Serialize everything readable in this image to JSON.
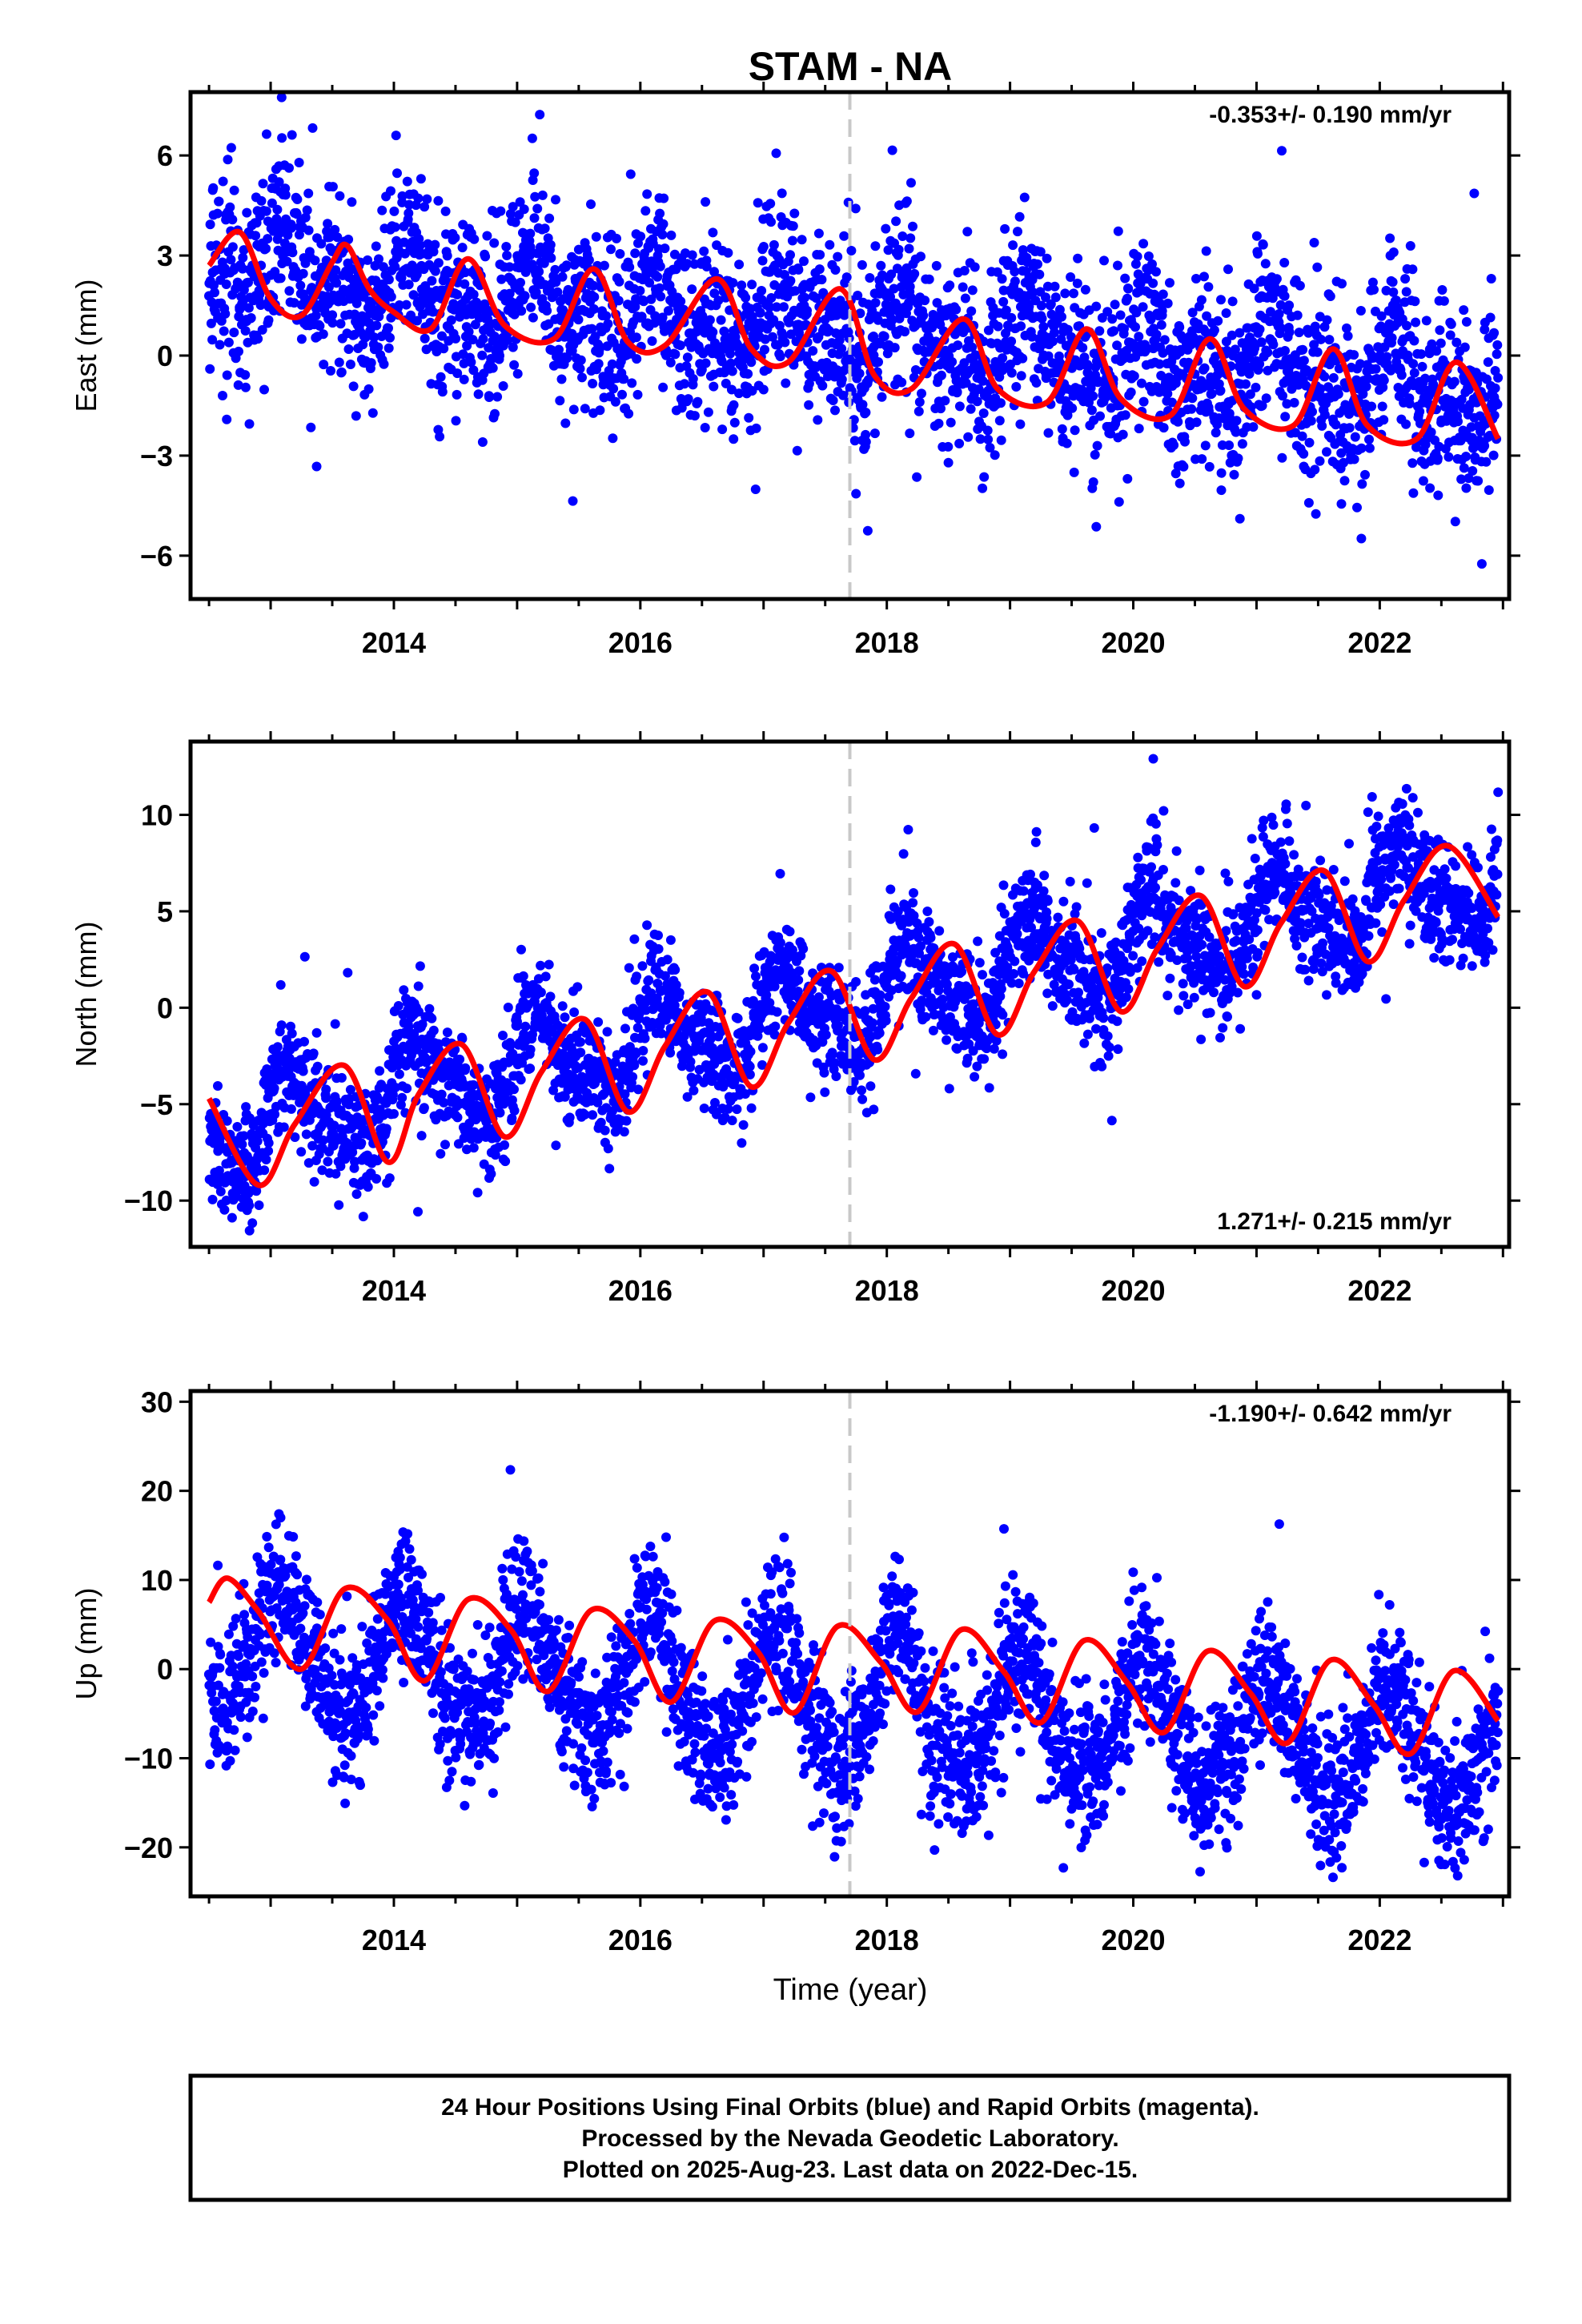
{
  "chart_data": [
    {
      "type": "scatter",
      "title": "STAM - NA",
      "ylabel": "East (mm)",
      "xlabel": "",
      "xlim": [
        2012.35,
        2023.05
      ],
      "ylim": [
        -7.3,
        7.9
      ],
      "xticks": [
        2014,
        2016,
        2018,
        2020,
        2022
      ],
      "xtick_labels": [
        "2014",
        "2016",
        "2018",
        "2020",
        "2022"
      ],
      "yticks": [
        6,
        3,
        0,
        -3,
        -6
      ],
      "ytick_labels": [
        "6",
        "3",
        "0",
        "−3",
        "−6"
      ],
      "rate_text": "-0.353+/- 0.190 mm/yr",
      "rate_position": "top-right",
      "vline_x": 2017.7,
      "colors": {
        "points": "#0000ff",
        "fit": "#ff0000",
        "vline": "#c8c8c8"
      },
      "model": {
        "trend": -0.353,
        "offset": 2.6,
        "sin": 0.7,
        "cos": 0.5,
        "sin2": 0.55,
        "cos2": 0.25,
        "noise": 1.3,
        "t0": 2012.5,
        "t1": 2022.96
      },
      "series": [
        {
          "kind": "fit",
          "x": [
            2012.5,
            2012.75,
            2013.0,
            2013.25,
            2013.5,
            2013.62,
            2013.8,
            2014.0,
            2014.3,
            2014.6,
            2014.9,
            2015.3,
            2015.62,
            2015.9,
            2016.2,
            2016.62,
            2016.9,
            2017.2,
            2017.62,
            2017.9,
            2018.2,
            2018.62,
            2018.9,
            2019.3,
            2019.62,
            2019.9,
            2020.3,
            2020.62,
            2020.9,
            2021.3,
            2021.62,
            2021.9,
            2022.3,
            2022.62,
            2022.96
          ],
          "y": [
            2.7,
            3.7,
            1.7,
            1.2,
            2.8,
            3.3,
            2.0,
            1.3,
            0.8,
            2.9,
            0.9,
            0.5,
            2.6,
            0.4,
            0.3,
            2.3,
            0.2,
            -0.2,
            2.0,
            -0.6,
            -1.0,
            1.1,
            -1.0,
            -1.4,
            0.8,
            -1.3,
            -1.8,
            0.5,
            -1.6,
            -2.1,
            0.2,
            -2.1,
            -2.5,
            -0.2,
            -2.5
          ]
        }
      ]
    },
    {
      "type": "scatter",
      "ylabel": "North (mm)",
      "xlabel": "",
      "xlim": [
        2012.35,
        2023.05
      ],
      "ylim": [
        -12.4,
        13.8
      ],
      "xticks": [
        2014,
        2016,
        2018,
        2020,
        2022
      ],
      "xtick_labels": [
        "2014",
        "2016",
        "2018",
        "2020",
        "2022"
      ],
      "yticks": [
        10,
        5,
        0,
        -5,
        -10
      ],
      "ytick_labels": [
        "10",
        "5",
        "0",
        "−5",
        "−10"
      ],
      "rate_text": "1.271+/- 0.215 mm/yr",
      "rate_position": "bottom-right",
      "vline_x": 2017.7,
      "colors": {
        "points": "#0000ff",
        "fit": "#ff0000",
        "vline": "#c8c8c8"
      },
      "model": {
        "trend": 1.271,
        "offset": -6.4,
        "sin": 1.9,
        "cos": 0.9,
        "sin2": 0.7,
        "cos2": 0.3,
        "noise": 1.5,
        "t0": 2012.5,
        "t1": 2022.96
      },
      "series": [
        {
          "kind": "fit",
          "x": [
            2012.5,
            2012.9,
            2013.2,
            2013.6,
            2013.95,
            2014.2,
            2014.55,
            2014.9,
            2015.2,
            2015.55,
            2015.9,
            2016.2,
            2016.55,
            2016.9,
            2017.2,
            2017.55,
            2017.9,
            2018.2,
            2018.55,
            2018.9,
            2019.2,
            2019.55,
            2019.9,
            2020.2,
            2020.55,
            2020.9,
            2021.2,
            2021.55,
            2021.9,
            2022.2,
            2022.55,
            2022.96
          ],
          "y": [
            -4.7,
            -9.2,
            -6.0,
            -3.0,
            -8.0,
            -4.5,
            -1.9,
            -6.7,
            -3.3,
            -0.6,
            -5.4,
            -2.0,
            0.8,
            -4.1,
            -0.8,
            1.9,
            -2.7,
            0.5,
            3.3,
            -1.4,
            1.9,
            4.5,
            -0.2,
            3.1,
            5.8,
            1.1,
            4.4,
            7.1,
            2.4,
            5.6,
            8.4,
            4.7
          ]
        }
      ]
    },
    {
      "type": "scatter",
      "ylabel": "Up (mm)",
      "xlabel": "Time (year)",
      "xlim": [
        2012.35,
        2023.05
      ],
      "ylim": [
        -25.5,
        31.2
      ],
      "xticks": [
        2014,
        2016,
        2018,
        2020,
        2022
      ],
      "xtick_labels": [
        "2014",
        "2016",
        "2018",
        "2020",
        "2022"
      ],
      "yticks": [
        30,
        20,
        10,
        0,
        -10,
        -20
      ],
      "ytick_labels": [
        "30",
        "20",
        "10",
        "0",
        "−10",
        "−20"
      ],
      "rate_text": "-1.190+/- 0.642 mm/yr",
      "rate_position": "top-right",
      "vline_x": 2017.7,
      "colors": {
        "points": "#0000ff",
        "fit": "#ff0000",
        "vline": "#c8c8c8"
      },
      "model": {
        "trend": -1.19,
        "offset": 2.7,
        "sin": 3.6,
        "cos": 5.6,
        "sin2": 0.6,
        "cos2": 0.4,
        "noise": 4.0,
        "t0": 2012.5,
        "t1": 2022.96
      },
      "series": [
        {
          "kind": "fit",
          "x": [
            2012.5,
            2012.65,
            2012.9,
            2013.25,
            2013.6,
            2013.95,
            2014.25,
            2014.6,
            2014.95,
            2015.25,
            2015.6,
            2015.95,
            2016.25,
            2016.6,
            2016.95,
            2017.25,
            2017.6,
            2017.95,
            2018.25,
            2018.6,
            2018.95,
            2019.25,
            2019.6,
            2019.95,
            2020.25,
            2020.6,
            2020.95,
            2021.25,
            2021.6,
            2021.95,
            2022.25,
            2022.6,
            2022.96
          ],
          "y": [
            7.5,
            10.2,
            6.5,
            0.0,
            9.0,
            5.5,
            -1.3,
            7.8,
            4.4,
            -2.5,
            6.6,
            3.2,
            -3.7,
            5.4,
            2.0,
            -4.9,
            4.8,
            0.8,
            -4.8,
            4.4,
            -0.3,
            -6.0,
            3.2,
            -1.5,
            -7.1,
            2.0,
            -2.7,
            -8.3,
            1.0,
            -4.0,
            -9.5,
            -0.2,
            -5.8
          ]
        }
      ]
    }
  ],
  "footer": {
    "line1": "24 Hour Positions Using Final Orbits (blue) and Rapid Orbits (magenta).",
    "line2": "Processed by the Nevada Geodetic Laboratory.",
    "line3": "Plotted on 2025-Aug-23. Last data on 2022-Dec-15."
  }
}
